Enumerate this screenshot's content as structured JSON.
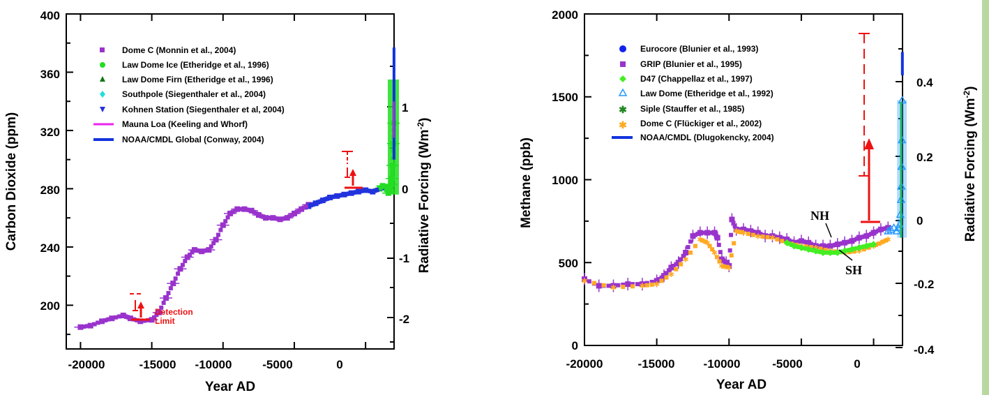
{
  "colors": {
    "dome_c": "#9933cc",
    "law_dome_ice": "#22dd22",
    "law_dome_firn": "#117711",
    "southpole": "#22dddd",
    "kohnen": "#2233dd",
    "mauna_loa": "#ee22ee",
    "noaa": "#1133dd",
    "red": "#ee1111",
    "eurocore": "#1122ee",
    "grip": "#9933cc",
    "d47": "#44ee22",
    "law_dome_ch4": "#2299ff",
    "siple": "#228822",
    "dome_c_ch4": "#ffaa22",
    "strip": "#b8d8a0"
  },
  "chart_data": [
    {
      "type": "scatter",
      "xlabel": "Year AD",
      "ylabel": "Carbon Dioxide (ppm)",
      "y2label": "Radiative Forcing (Wm",
      "y2label_sup": "-2",
      "y2label_end": ")",
      "xlim": [
        -21000,
        2000
      ],
      "ylim": [
        170,
        400
      ],
      "x_ticks": [
        "-20000",
        "-15000",
        "-10000",
        "-5000",
        "0"
      ],
      "y_ticks": [
        "200",
        "240",
        "280",
        "320",
        "360",
        "400"
      ],
      "y2_ticks": [
        "1",
        "0",
        "-1",
        "-2"
      ],
      "legend": [
        {
          "label": "Dome C (Monnin et al., 2004)",
          "marker": "square",
          "color": "#9933cc"
        },
        {
          "label": "Law Dome Ice (Etheridge et al., 1996)",
          "marker": "circle",
          "color": "#22dd22"
        },
        {
          "label": "Law Dome Firn (Etheridge et al., 1996)",
          "marker": "triangle",
          "color": "#117711"
        },
        {
          "label": "Southpole (Siegenthaler et al., 2004)",
          "marker": "diamond",
          "color": "#22dddd"
        },
        {
          "label": "Kohnen Station (Siegenthaler et al, 2004)",
          "marker": "tri-down",
          "color": "#2233dd"
        },
        {
          "label": "Mauna Loa (Keeling and Whorf)",
          "marker": "line",
          "color": "#ee22ee"
        },
        {
          "label": "NOAA/CMDL Global  (Conway, 2004)",
          "marker": "line",
          "color": "#1133dd"
        }
      ],
      "annotation": [
        "Detection",
        "Limit"
      ],
      "series": [
        {
          "name": "Dome C (Monnin et al., 2004)",
          "x": [
            -20000,
            -19300,
            -18500,
            -17800,
            -17000,
            -16500,
            -15800,
            -15000,
            -14500,
            -14000,
            -13500,
            -13000,
            -12500,
            -12000,
            -11500,
            -11000,
            -10500,
            -10000,
            -9500,
            -9000,
            -8500,
            -8000,
            -7500,
            -7000,
            -6500,
            -6000,
            -5500,
            -5000,
            -4500,
            -4000
          ],
          "y": [
            185,
            186,
            189,
            191,
            193,
            191,
            189,
            190,
            195,
            205,
            215,
            225,
            233,
            238,
            237,
            238,
            245,
            255,
            263,
            266,
            266,
            265,
            262,
            260,
            260,
            259,
            260,
            263,
            266,
            269
          ]
        },
        {
          "name": "Kohnen Station (Siegenthaler et al, 2004)",
          "x": [
            -4000,
            -3500,
            -3000,
            -2500,
            -2000,
            -1500,
            -1000,
            -500,
            0,
            500,
            1000,
            1500
          ],
          "y": [
            268,
            270,
            272,
            274,
            275,
            276,
            277,
            278,
            279,
            278,
            280,
            281
          ]
        },
        {
          "name": "Law Dome Ice (Etheridge et al., 1996)",
          "x": [
            1000,
            1200,
            1400,
            1600,
            1700,
            1800,
            1850,
            1900,
            1950,
            1970
          ],
          "y": [
            280,
            282,
            281,
            277,
            278,
            283,
            287,
            296,
            311,
            325
          ]
        },
        {
          "name": "NOAA/CMDL Global  (Conway, 2004)",
          "x": [
            1980,
            1990,
            2000,
            2004
          ],
          "y": [
            338,
            354,
            369,
            377
          ]
        }
      ]
    },
    {
      "type": "scatter",
      "xlabel": "Year AD",
      "ylabel": "Methane (ppb)",
      "y2label": "Radiative Forcing (Wm",
      "y2label_sup": "-2",
      "y2label_end": ")",
      "xlim": [
        -20000,
        2000
      ],
      "ylim": [
        0,
        2000
      ],
      "x_ticks": [
        "-20000",
        "-15000",
        "-10000",
        "-5000",
        "0"
      ],
      "y_ticks": [
        "0",
        "500",
        "1000",
        "1500",
        "2000"
      ],
      "y2_ticks": [
        "0.4",
        "0.2",
        "0",
        "-0.2",
        "-0.4"
      ],
      "legend": [
        {
          "label": "Eurocore  (Blunier et al., 1993)",
          "marker": "circle",
          "color": "#1122ee"
        },
        {
          "label": "GRIP (Blunier et al., 1995)",
          "marker": "square",
          "color": "#9933cc"
        },
        {
          "label": "D47 (Chappellaz et al., 1997)",
          "marker": "diamond",
          "color": "#44ee22"
        },
        {
          "label": "Law Dome (Etheridge et al., 1992)",
          "marker": "tri-open",
          "color": "#2299ff"
        },
        {
          "label": "Siple (Stauffer et al., 1985)",
          "marker": "star",
          "color": "#228822"
        },
        {
          "label": "Dome C (Flückiger et al., 2002)",
          "marker": "star",
          "color": "#ffaa22"
        },
        {
          "label": "NOAA/CMDL (Dlugokencky, 2004)",
          "marker": "line",
          "color": "#1133dd"
        }
      ],
      "labels": {
        "nh": "NH",
        "sh": "SH"
      },
      "series": [
        {
          "name": "GRIP (Blunier et al., 1995)",
          "x": [
            -20000,
            -19000,
            -18000,
            -17000,
            -16000,
            -15000,
            -14500,
            -14000,
            -13500,
            -13000,
            -12500,
            -12000,
            -11500,
            -11000,
            -10800,
            -10500,
            -10200,
            -10000,
            -9800,
            -9500,
            -9000,
            -8500,
            -8000,
            -7500,
            -7000,
            -6500,
            -6000,
            -5500,
            -5000,
            -4500,
            -4000,
            -3500,
            -3000,
            -2500,
            -2000,
            -1500,
            -1000,
            -500,
            0,
            500,
            1000
          ],
          "y": [
            400,
            360,
            360,
            370,
            370,
            390,
            420,
            470,
            500,
            560,
            660,
            680,
            680,
            680,
            650,
            520,
            500,
            480,
            760,
            700,
            700,
            690,
            680,
            660,
            660,
            650,
            640,
            620,
            630,
            620,
            600,
            600,
            600,
            610,
            620,
            630,
            650,
            660,
            680,
            700,
            710
          ]
        },
        {
          "name": "Dome C (Flückiger et al., 2002)",
          "x": [
            -20000,
            -18000,
            -16000,
            -15000,
            -14000,
            -13000,
            -12000,
            -11500,
            -11000,
            -10500,
            -10000,
            -9500,
            -9000,
            -8000,
            -7000,
            -6000,
            -5000,
            -4000,
            -3000,
            -2000,
            -1000,
            0,
            500,
            1000
          ],
          "y": [
            390,
            350,
            360,
            370,
            430,
            520,
            640,
            620,
            560,
            480,
            470,
            690,
            680,
            660,
            650,
            620,
            600,
            590,
            570,
            560,
            570,
            600,
            620,
            640
          ]
        },
        {
          "name": "D47 (Chappellaz et al., 1997)",
          "x": [
            -6000,
            -5500,
            -5000,
            -4500,
            -4000,
            -3500,
            -3000,
            -2500,
            -2000,
            -1500,
            -1000,
            -500,
            0
          ],
          "y": [
            620,
            600,
            590,
            580,
            570,
            560,
            560,
            560,
            570,
            580,
            590,
            600,
            610
          ]
        },
        {
          "name": "Law Dome (Etheridge et al., 1992)",
          "x": [
            1000,
            1200,
            1400,
            1600,
            1700,
            1800,
            1850,
            1900,
            1920,
            1940,
            1960,
            1980
          ],
          "y": [
            690,
            700,
            710,
            690,
            710,
            730,
            790,
            880,
            960,
            1080,
            1240,
            1480
          ]
        },
        {
          "name": "NOAA/CMDL (Dlugokencky, 2004)",
          "x": [
            1984,
            1990,
            2000,
            2004
          ],
          "y": [
            1630,
            1700,
            1760,
            1770
          ]
        }
      ]
    }
  ]
}
